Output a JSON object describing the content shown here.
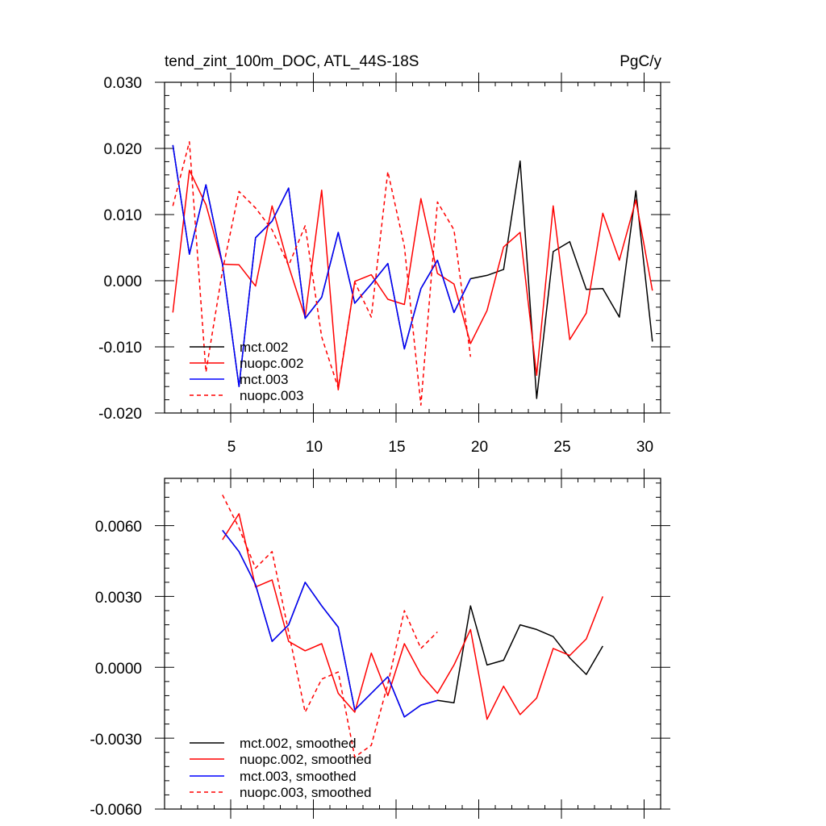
{
  "colors": {
    "black": "#000000",
    "red": "#ff0000",
    "blue": "#0000ff"
  },
  "chart_data": [
    {
      "type": "line",
      "title": "tend_zint_100m_DOC, ATL_44S-18S",
      "units": "PgC/y",
      "xlim": [
        1,
        31
      ],
      "ylim": [
        -0.02,
        0.03
      ],
      "xticks": [
        5,
        10,
        15,
        20,
        25,
        30
      ],
      "xtick_labels": [
        "5",
        "10",
        "15",
        "20",
        "25",
        "30"
      ],
      "yticks": [
        -0.02,
        -0.01,
        0.0,
        0.01,
        0.02,
        0.03
      ],
      "ytick_labels": [
        "-0.020",
        "-0.010",
        "0.000",
        "0.010",
        "0.020",
        "0.030"
      ],
      "legend_position": "bottom-left",
      "series": [
        {
          "name": "mct.002",
          "color": "#000000",
          "dash": false,
          "x": [
            1.5,
            2.5,
            3.5,
            4.5,
            5.5,
            6.5,
            7.5,
            8.5,
            9.5,
            10.5,
            11.5,
            12.5,
            13.5,
            14.5,
            15.5,
            16.5,
            17.5,
            18.5,
            19.5,
            20.5,
            21.5,
            22.5,
            23.5,
            24.5,
            25.5,
            26.5,
            27.5,
            28.5,
            29.5,
            30.5
          ],
          "y": [
            0.0205,
            0.004,
            0.0145,
            0.0025,
            -0.016,
            0.0065,
            0.009,
            0.014,
            -0.0057,
            -0.0025,
            0.0073,
            -0.0034,
            -0.0005,
            0.0026,
            -0.0103,
            -0.0012,
            0.0031,
            -0.0048,
            0.0003,
            0.0008,
            0.0017,
            0.0181,
            -0.0178,
            0.0044,
            0.0059,
            -0.0013,
            -0.0012,
            -0.0055,
            0.0136,
            -0.0092
          ]
        },
        {
          "name": "nuopc.002",
          "color": "#ff0000",
          "dash": false,
          "x": [
            1.5,
            2.5,
            3.5,
            4.5,
            5.5,
            6.5,
            7.5,
            8.5,
            9.5,
            10.5,
            11.5,
            12.5,
            13.5,
            14.5,
            15.5,
            16.5,
            17.5,
            18.5,
            19.5,
            20.5,
            21.5,
            22.5,
            23.5,
            24.5,
            25.5,
            26.5,
            27.5,
            28.5,
            29.5,
            30.5
          ],
          "y": [
            -0.0048,
            0.0167,
            0.0115,
            0.0025,
            0.0024,
            -0.0008,
            0.0113,
            0.0022,
            -0.0055,
            0.0137,
            -0.0165,
            -0.0001,
            0.0009,
            -0.0028,
            -0.0036,
            0.0124,
            0.0011,
            -0.0005,
            -0.0095,
            -0.0045,
            0.0051,
            0.0073,
            -0.0143,
            0.0113,
            -0.0089,
            -0.0049,
            0.0102,
            0.0031,
            0.0122,
            -0.0015
          ]
        },
        {
          "name": "mct.003",
          "color": "#0000ff",
          "dash": false,
          "x": [
            1.5,
            2.5,
            3.5,
            4.5,
            5.5,
            6.5,
            7.5,
            8.5,
            9.5,
            10.5,
            11.5,
            12.5,
            13.5,
            14.5,
            15.5,
            16.5,
            17.5,
            18.5,
            19.5
          ],
          "y": [
            0.0205,
            0.004,
            0.0145,
            0.0025,
            -0.016,
            0.0065,
            0.009,
            0.014,
            -0.0057,
            -0.0025,
            0.0073,
            -0.0034,
            -0.0005,
            0.0026,
            -0.0103,
            -0.0012,
            0.0031,
            -0.0048,
            0.0003
          ]
        },
        {
          "name": "nuopc.003",
          "color": "#ff0000",
          "dash": true,
          "x": [
            1.5,
            2.5,
            3.5,
            4.5,
            5.5,
            6.5,
            7.5,
            8.5,
            9.5,
            10.5,
            11.5,
            12.5,
            13.5,
            14.5,
            15.5,
            16.5,
            17.5,
            18.5,
            19.5
          ],
          "y": [
            0.0113,
            0.021,
            -0.0138,
            0.0015,
            0.0135,
            0.011,
            0.0077,
            0.0023,
            0.0083,
            -0.0085,
            -0.0162,
            -0.0002,
            -0.0055,
            0.0165,
            0.0052,
            -0.0188,
            0.0119,
            0.0077,
            -0.0115
          ]
        }
      ]
    },
    {
      "type": "line",
      "xlim": [
        1,
        31
      ],
      "ylim": [
        -0.006,
        0.008
      ],
      "xticks": [
        5,
        10,
        15,
        20,
        25,
        30
      ],
      "yticks": [
        -0.006,
        -0.003,
        0.0,
        0.003,
        0.006
      ],
      "ytick_labels": [
        "-0.0060",
        "-0.0030",
        "0.0000",
        "0.0030",
        "0.0060"
      ],
      "legend_position": "bottom-left",
      "series": [
        {
          "name": "mct.002, smoothed",
          "color": "#000000",
          "dash": false,
          "x": [
            4.5,
            5.5,
            6.5,
            7.5,
            8.5,
            9.5,
            10.5,
            11.5,
            12.5,
            13.5,
            14.5,
            15.5,
            16.5,
            17.5,
            18.5,
            19.5,
            20.5,
            21.5,
            22.5,
            23.5,
            24.5,
            25.5,
            26.5,
            27.5
          ],
          "y": [
            0.0058,
            0.0049,
            0.0035,
            0.0011,
            0.0018,
            0.0036,
            0.0026,
            0.0017,
            -0.0018,
            -0.0011,
            -0.0004,
            -0.0021,
            -0.0016,
            -0.0014,
            -0.0015,
            0.0026,
            0.0001,
            0.0003,
            0.0018,
            0.0016,
            0.0013,
            0.0004,
            -0.0003,
            0.0009
          ]
        },
        {
          "name": "nuopc.002, smoothed",
          "color": "#ff0000",
          "dash": false,
          "x": [
            4.5,
            5.5,
            6.5,
            7.5,
            8.5,
            9.5,
            10.5,
            11.5,
            12.5,
            13.5,
            14.5,
            15.5,
            16.5,
            17.5,
            18.5,
            19.5,
            20.5,
            21.5,
            22.5,
            23.5,
            24.5,
            25.5,
            26.5,
            27.5
          ],
          "y": [
            0.0054,
            0.0065,
            0.0034,
            0.0037,
            0.0011,
            0.0007,
            0.001,
            -0.0011,
            -0.0019,
            0.0006,
            -0.0012,
            0.001,
            -0.0003,
            -0.0011,
            0.0001,
            0.0016,
            -0.0022,
            -0.0008,
            -0.002,
            -0.0013,
            0.0008,
            0.0005,
            0.0012,
            0.003
          ]
        },
        {
          "name": "mct.003, smoothed",
          "color": "#0000ff",
          "dash": false,
          "x": [
            4.5,
            5.5,
            6.5,
            7.5,
            8.5,
            9.5,
            10.5,
            11.5,
            12.5,
            13.5,
            14.5,
            15.5,
            16.5,
            17.5
          ],
          "y": [
            0.0058,
            0.0049,
            0.0035,
            0.0011,
            0.0018,
            0.0036,
            0.0026,
            0.0017,
            -0.0018,
            -0.0011,
            -0.0004,
            -0.0021,
            -0.0016,
            -0.0014
          ]
        },
        {
          "name": "nuopc.003, smoothed",
          "color": "#ff0000",
          "dash": true,
          "x": [
            4.5,
            5.5,
            6.5,
            7.5,
            8.5,
            9.5,
            10.5,
            11.5,
            12.5,
            13.5,
            14.5,
            15.5,
            16.5,
            17.5
          ],
          "y": [
            0.0073,
            0.0059,
            0.0042,
            0.0049,
            0.0015,
            -0.0019,
            -0.0005,
            -0.0002,
            -0.0038,
            -0.0033,
            -0.0007,
            0.0024,
            0.0008,
            0.0015
          ]
        }
      ]
    }
  ]
}
